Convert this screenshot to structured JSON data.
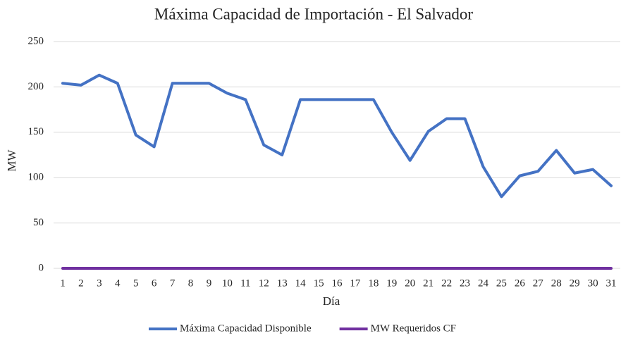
{
  "chart_data": {
    "type": "line",
    "title": "Máxima Capacidad de Importación - El Salvador",
    "x_label": "Día",
    "y_label": "MW",
    "categories": [
      "1",
      "2",
      "3",
      "4",
      "5",
      "6",
      "7",
      "8",
      "9",
      "10",
      "11",
      "12",
      "13",
      "14",
      "15",
      "16",
      "17",
      "18",
      "19",
      "20",
      "21",
      "22",
      "23",
      "24",
      "25",
      "26",
      "27",
      "28",
      "29",
      "30",
      "31"
    ],
    "series": [
      {
        "name": "Máxima Capacidad Disponible",
        "color": "#4472c4",
        "values": [
          204,
          202,
          213,
          204,
          147,
          134,
          204,
          204,
          204,
          193,
          186,
          136,
          125,
          186,
          186,
          186,
          186,
          186,
          150,
          119,
          151,
          165,
          165,
          112,
          79,
          102,
          107,
          130,
          105,
          109,
          91
        ]
      },
      {
        "name": "MW Requeridos CF",
        "color": "#7030a0",
        "values": [
          0,
          0,
          0,
          0,
          0,
          0,
          0,
          0,
          0,
          0,
          0,
          0,
          0,
          0,
          0,
          0,
          0,
          0,
          0,
          0,
          0,
          0,
          0,
          0,
          0,
          0,
          0,
          0,
          0,
          0,
          0
        ]
      }
    ],
    "ylim": [
      0,
      250
    ],
    "yticks": [
      0,
      50,
      100,
      150,
      200,
      250
    ],
    "grid": true,
    "legend": "bottom"
  }
}
